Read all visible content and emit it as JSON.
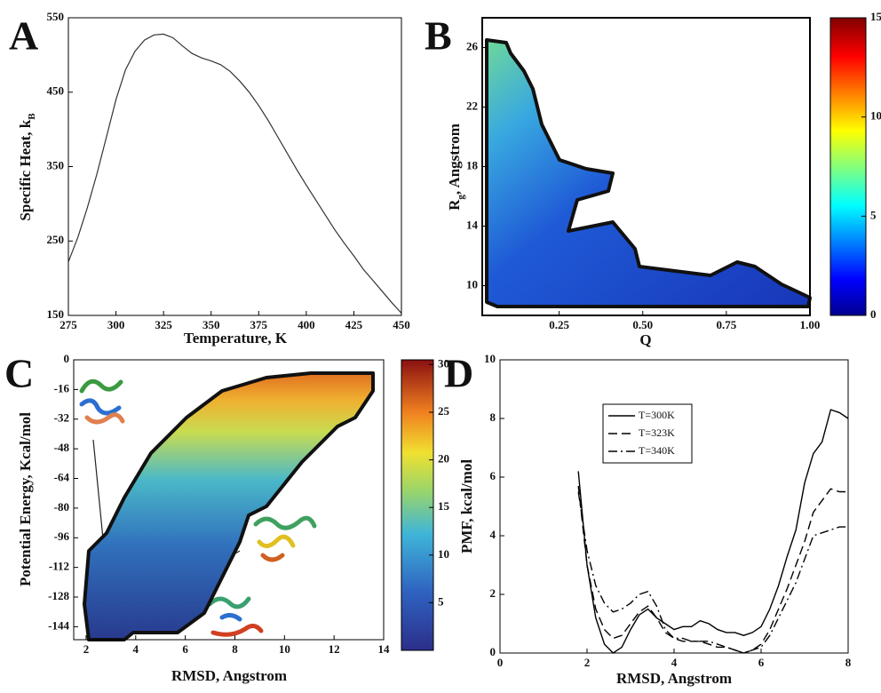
{
  "chart_data": [
    {
      "type": "line",
      "panel": "A",
      "xlabel": "Temperature, K",
      "ylabel": [
        {
          "text": "Specific Heat, k"
        },
        {
          "text": "B",
          "sub": true
        }
      ],
      "xlim": [
        275,
        450
      ],
      "xticks": [
        275,
        300,
        325,
        350,
        375,
        400,
        425,
        450
      ],
      "ylim": [
        150,
        550
      ],
      "yticks": [
        150,
        250,
        350,
        450,
        550
      ],
      "color": "#333333",
      "x": [
        275,
        280,
        285,
        290,
        295,
        300,
        305,
        310,
        315,
        320,
        325,
        330,
        335,
        340,
        345,
        350,
        355,
        360,
        365,
        370,
        375,
        380,
        385,
        390,
        395,
        400,
        405,
        410,
        415,
        420,
        425,
        430,
        435,
        440,
        445,
        450
      ],
      "values": [
        222,
        255,
        295,
        340,
        390,
        440,
        480,
        505,
        520,
        527,
        528,
        523,
        512,
        502,
        496,
        492,
        487,
        478,
        465,
        450,
        432,
        412,
        390,
        368,
        346,
        325,
        305,
        285,
        265,
        247,
        230,
        212,
        197,
        182,
        167,
        153
      ]
    },
    {
      "type": "heatmap",
      "panel": "B",
      "xlabel": "Q",
      "ylabel": [
        {
          "text": "R"
        },
        {
          "text": "g",
          "sub": true
        },
        {
          "text": ", Angstrom"
        }
      ],
      "xlim": [
        0.02,
        1.0
      ],
      "xticks": [
        {
          "value": 0.25,
          "label": "0.25"
        },
        {
          "value": 0.5,
          "label": "0.50"
        },
        {
          "value": 0.75,
          "label": "0.75"
        },
        {
          "value": 1.0,
          "label": "1.00"
        }
      ],
      "ylim": [
        8,
        28
      ],
      "yticks": [
        10,
        14,
        18,
        22,
        26
      ],
      "clim": [
        0,
        15
      ],
      "cticks": [
        0,
        5,
        10,
        15
      ]
    },
    {
      "type": "contour",
      "panel": "C",
      "xlabel": "RMSD, Angstrom",
      "ylabel": "Potential Energy, Kcal/mol",
      "xlim": [
        1.5,
        14
      ],
      "xticks": [
        2,
        4,
        6,
        8,
        10,
        12,
        14
      ],
      "ylim": [
        -151,
        0
      ],
      "yticks": [
        -144,
        -128,
        -112,
        -96,
        -80,
        -64,
        -48,
        -32,
        -16,
        0
      ],
      "clim": [
        0,
        30.5
      ],
      "cticks": [
        5,
        10,
        15,
        20,
        25,
        30
      ]
    },
    {
      "type": "line",
      "panel": "D",
      "xlabel": "RMSD, Angstrom",
      "ylabel": "PMF, kcal/mol",
      "xlim": [
        0,
        8
      ],
      "xticks": [
        0,
        2,
        4,
        6,
        8
      ],
      "ylim": [
        0,
        10
      ],
      "yticks": [
        0,
        2,
        4,
        6,
        8,
        10
      ],
      "legend": "upper center",
      "x": [
        1.8,
        2.0,
        2.2,
        2.4,
        2.6,
        2.8,
        3.0,
        3.2,
        3.4,
        3.6,
        3.8,
        4.0,
        4.2,
        4.4,
        4.6,
        4.8,
        5.0,
        5.2,
        5.4,
        5.6,
        5.8,
        6.0,
        6.2,
        6.4,
        6.6,
        6.8,
        7.0,
        7.2,
        7.4,
        7.6,
        7.8,
        8.0
      ],
      "series": [
        {
          "name": "T=300K",
          "color": "#000000",
          "linestyle": "solid",
          "values": [
            6.2,
            3.0,
            1.2,
            0.3,
            0.0,
            0.2,
            0.8,
            1.3,
            1.5,
            1.2,
            1.0,
            0.8,
            0.9,
            0.9,
            1.1,
            1.0,
            0.8,
            0.7,
            0.7,
            0.6,
            0.7,
            0.9,
            1.5,
            2.3,
            3.3,
            4.2,
            5.8,
            6.8,
            7.2,
            8.3,
            8.2,
            8.0
          ]
        },
        {
          "name": "T=323K",
          "color": "#000000",
          "linestyle": "dashed",
          "values": [
            5.7,
            3.0,
            1.5,
            0.8,
            0.5,
            0.6,
            1.0,
            1.4,
            1.6,
            1.2,
            0.7,
            0.5,
            0.4,
            0.4,
            0.4,
            0.3,
            0.2,
            0.2,
            0.1,
            0.0,
            0.1,
            0.3,
            0.8,
            1.5,
            2.2,
            3.0,
            3.8,
            4.8,
            5.2,
            5.6,
            5.5,
            5.5
          ]
        },
        {
          "name": "T=340K",
          "color": "#000000",
          "linestyle": "dashdot",
          "values": [
            5.5,
            3.5,
            2.3,
            1.7,
            1.4,
            1.5,
            1.7,
            2.0,
            2.1,
            1.6,
            0.8,
            0.5,
            0.5,
            0.4,
            0.4,
            0.4,
            0.3,
            0.2,
            0.1,
            0.0,
            0.1,
            0.2,
            0.6,
            1.2,
            1.8,
            2.4,
            3.2,
            4.0,
            4.1,
            4.2,
            4.3,
            4.3
          ]
        }
      ]
    }
  ]
}
